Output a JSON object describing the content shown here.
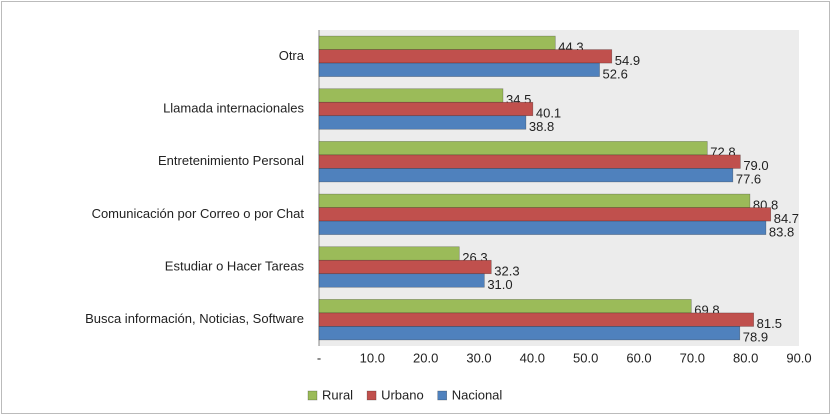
{
  "chart_data": {
    "type": "bar",
    "orientation": "horizontal",
    "categories": [
      "Otra",
      "Llamada internacionales",
      "Entretenimiento Personal",
      "Comunicación por Correo o por Chat",
      "Estudiar o Hacer Tareas",
      "Busca información, Noticias, Software"
    ],
    "series": [
      {
        "name": "Rural",
        "color": "#9bbb59",
        "values": [
          44.3,
          34.5,
          72.8,
          80.8,
          26.3,
          69.8
        ],
        "value_labels": [
          "44.3",
          "34.5",
          "72.8",
          "80.8",
          "26.3",
          "69.8"
        ]
      },
      {
        "name": "Urbano",
        "color": "#c0504d",
        "values": [
          54.9,
          40.1,
          79,
          84.7,
          32.3,
          81.5
        ],
        "value_labels": [
          "54.9",
          "40.1",
          "79.0",
          "84.7",
          "32.3",
          "81.5"
        ]
      },
      {
        "name": "Nacional",
        "color": "#4f81bd",
        "values": [
          52.6,
          38.8,
          77.6,
          83.8,
          31,
          78.9
        ],
        "value_labels": [
          "52.6",
          "38.8",
          "77.6",
          "83.8",
          "31.0",
          "78.9"
        ]
      }
    ],
    "xlim": [
      0,
      90
    ],
    "xticks": [
      {
        "value": 0,
        "label": "-"
      },
      {
        "value": 10,
        "label": "10.0"
      },
      {
        "value": 20,
        "label": "20.0"
      },
      {
        "value": 30,
        "label": "30.0"
      },
      {
        "value": 40,
        "label": "40.0"
      },
      {
        "value": 50,
        "label": "50.0"
      },
      {
        "value": 60,
        "label": "60.0"
      },
      {
        "value": 70,
        "label": "70.0"
      },
      {
        "value": 80,
        "label": "80.0"
      },
      {
        "value": 90,
        "label": "90.0"
      }
    ],
    "legend": "bottom"
  }
}
